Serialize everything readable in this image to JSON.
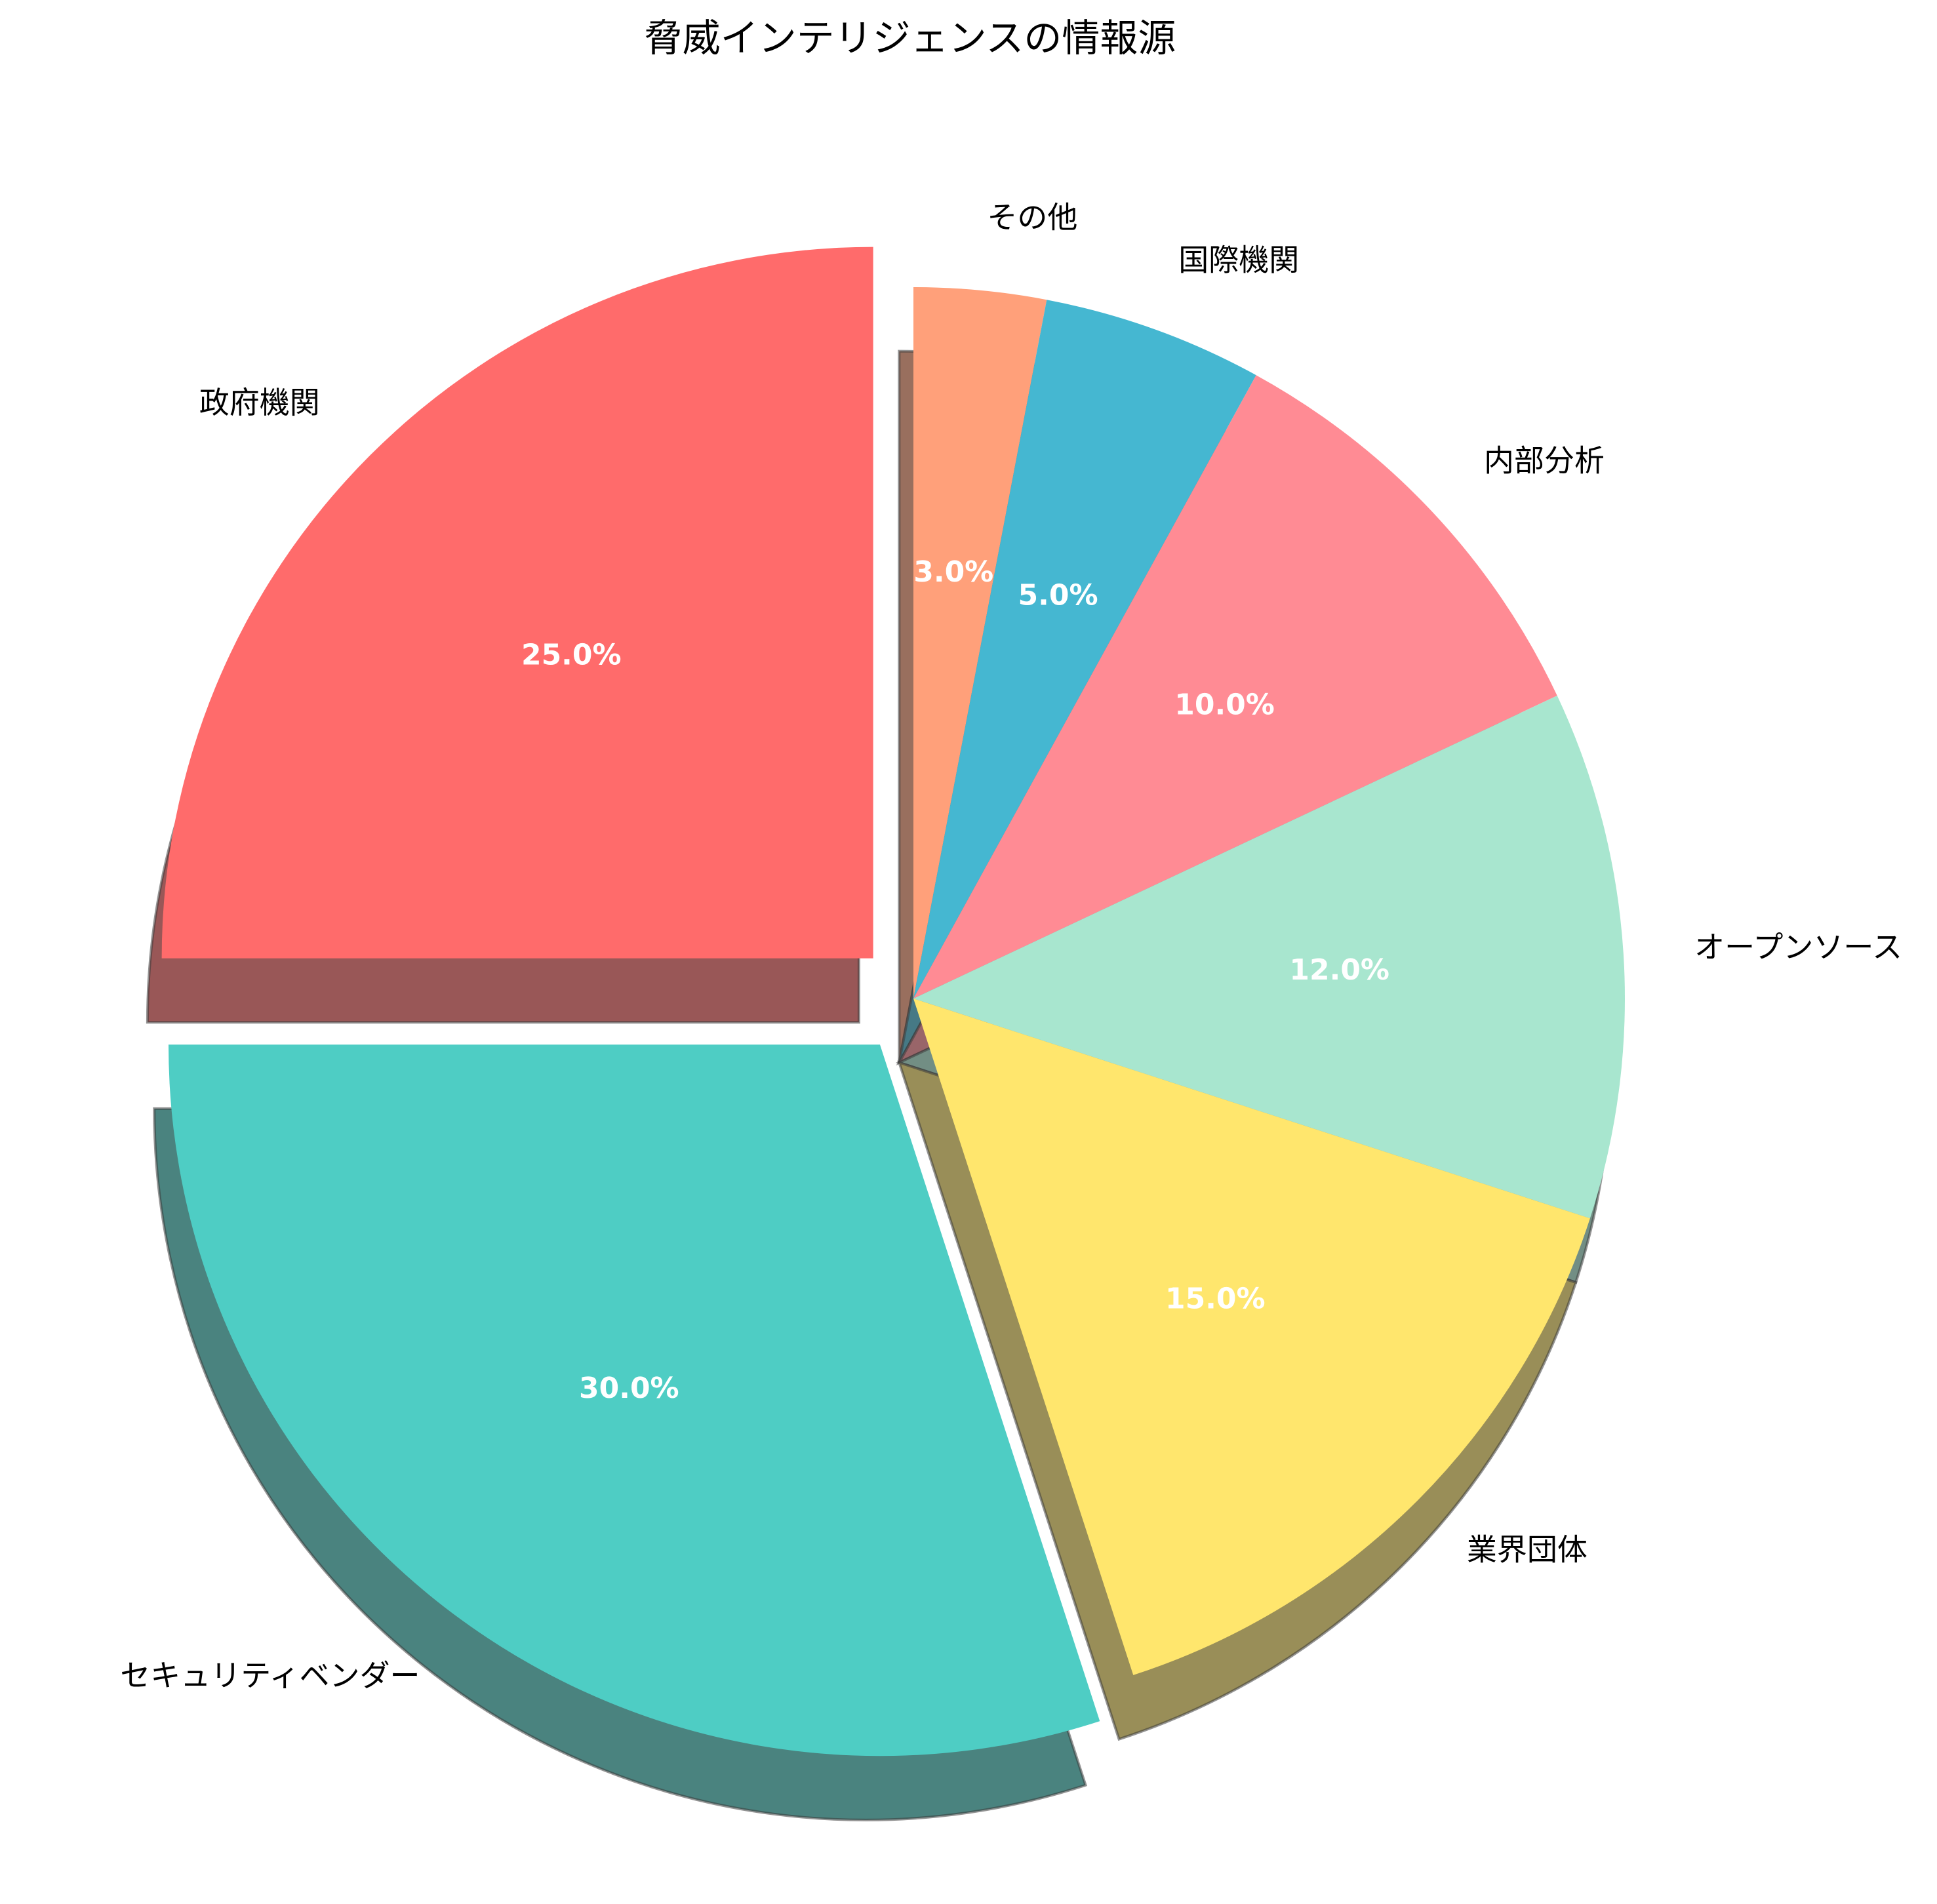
{
  "chart_data": {
    "type": "pie",
    "title": "脅威インテリジェンスの情報源",
    "categories": [
      "その他",
      "国際機関",
      "内部分析",
      "オープンソース",
      "業界団体",
      "セキュリティベンダー",
      "政府機関"
    ],
    "values": [
      3.0,
      5.0,
      10.0,
      12.0,
      15.0,
      30.0,
      25.0
    ],
    "percent_labels": [
      "3.0%",
      "5.0%",
      "10.0%",
      "12.0%",
      "15.0%",
      "30.0%",
      "25.0%"
    ],
    "colors": [
      "#FFA07A",
      "#45B7D1",
      "#FF8B94",
      "#A8E6CF",
      "#FFE66D",
      "#4ECDC4",
      "#FF6B6B"
    ],
    "exploded": [
      false,
      false,
      false,
      false,
      false,
      true,
      true
    ],
    "shadow": true,
    "start_angle_deg": 90,
    "direction": "clockwise",
    "legend": "none"
  }
}
